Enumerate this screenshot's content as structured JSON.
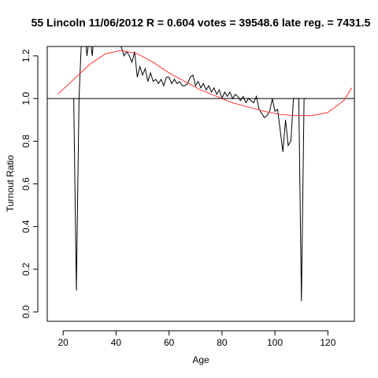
{
  "chart_data": {
    "type": "line",
    "title": "55 Lincoln 11/06/2012 R = 0.604 votes = 39548.6 late reg. = 7431.5",
    "xlabel": "Age",
    "ylabel": "Turnout Ratio",
    "xlim": [
      14,
      130
    ],
    "ylim": [
      -0.044,
      1.244
    ],
    "xticks": [
      20,
      40,
      60,
      80,
      100,
      120
    ],
    "yticks": [
      {
        "value": 0,
        "label": "0.0"
      },
      0.2,
      0.4,
      0.6,
      0.8,
      {
        "value": 1,
        "label": "1.0"
      },
      1.2
    ],
    "hline": 1,
    "series": [
      {
        "color": "#000000",
        "x": [
          24,
          25,
          26,
          27,
          28,
          29,
          30,
          31,
          32,
          33,
          34,
          35,
          36,
          37,
          38,
          39,
          40,
          41,
          42,
          43,
          44,
          45,
          46,
          47,
          48,
          49,
          50,
          51,
          52,
          53,
          54,
          55,
          56,
          57,
          58,
          59,
          60,
          61,
          62,
          63,
          64,
          65,
          66,
          67,
          68,
          69,
          70,
          71,
          72,
          73,
          74,
          75,
          76,
          77,
          78,
          79,
          80,
          81,
          82,
          83,
          84,
          85,
          86,
          87,
          88,
          89,
          90,
          91,
          92,
          93,
          94,
          95,
          96,
          97,
          98,
          99,
          100,
          101,
          102,
          103,
          104,
          105,
          106,
          107,
          108,
          109,
          110,
          111,
          112
        ],
        "values": [
          1.0,
          0.1,
          1.0,
          1.3,
          1.35,
          1.2,
          1.3,
          1.2,
          1.35,
          1.3,
          1.3,
          1.3,
          1.3,
          1.3,
          1.3,
          1.3,
          1.28,
          1.26,
          1.24,
          1.2,
          1.22,
          1.2,
          1.17,
          1.22,
          1.1,
          1.15,
          1.11,
          1.14,
          1.08,
          1.12,
          1.08,
          1.09,
          1.07,
          1.09,
          1.06,
          1.1,
          1.1,
          1.07,
          1.09,
          1.07,
          1.08,
          1.06,
          1.06,
          1.07,
          1.1,
          1.11,
          1.06,
          1.08,
          1.05,
          1.07,
          1.04,
          1.06,
          1.03,
          1.05,
          1.02,
          1.04,
          1.0,
          1.03,
          1.01,
          1.03,
          1.0,
          1.02,
          1.01,
          0.99,
          1.01,
          0.98,
          1.0,
          0.99,
          0.98,
          1.01,
          0.95,
          0.93,
          0.91,
          0.92,
          0.94,
          1.0,
          0.94,
          0.95,
          0.85,
          0.75,
          0.9,
          0.78,
          0.8,
          1.0,
          1.0,
          1.0,
          0.05,
          1.0,
          1.0
        ]
      },
      {
        "color": "#ff3333",
        "x": [
          18,
          24,
          30,
          36,
          42,
          48,
          54,
          60,
          66,
          72,
          78,
          84,
          90,
          96,
          102,
          108,
          114,
          120,
          126,
          129
        ],
        "values": [
          1.02,
          1.09,
          1.16,
          1.21,
          1.225,
          1.21,
          1.17,
          1.12,
          1.08,
          1.04,
          1.01,
          0.98,
          0.96,
          0.94,
          0.925,
          0.92,
          0.92,
          0.935,
          0.99,
          1.05
        ]
      }
    ]
  }
}
